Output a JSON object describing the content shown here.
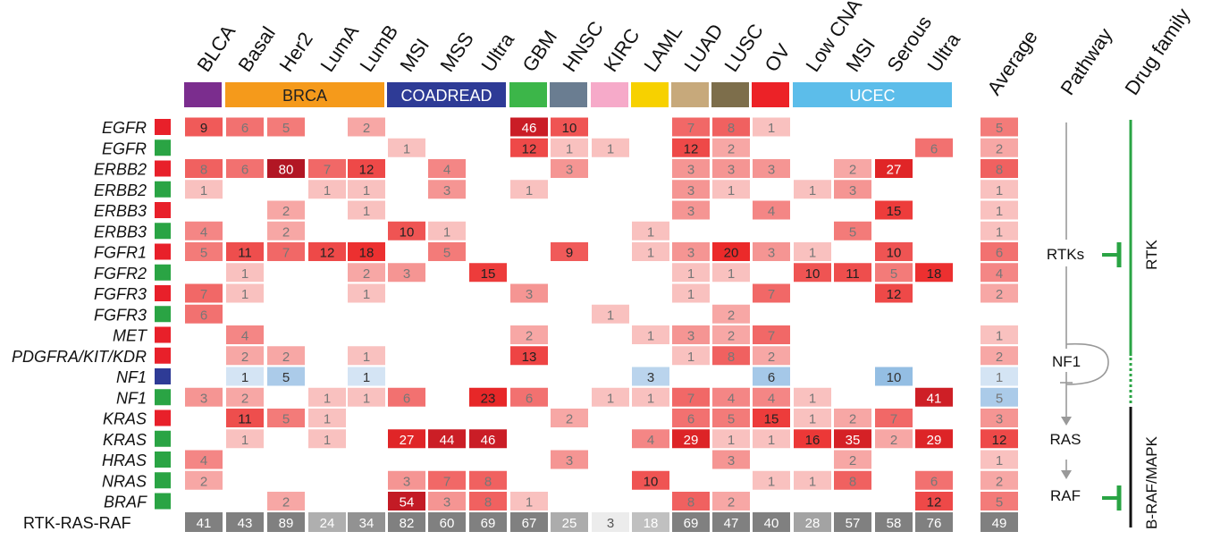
{
  "chart_data": {
    "type": "heatmap",
    "columns": [
      "BLCA",
      "Basal",
      "Her2",
      "LumA",
      "LumB",
      "MSI",
      "MSS",
      "Ultra",
      "GBM",
      "HNSC",
      "KIRC",
      "LAML",
      "LUAD",
      "LUSC",
      "OV",
      "Low CNA",
      "MSI",
      "Serous",
      "Ultra"
    ],
    "groups": [
      {
        "label": "",
        "color": "#7b2d8e"
      },
      {
        "label": "BRCA",
        "color": "#f59a1b"
      },
      {
        "label": "COADREAD",
        "color": "#2e3b96"
      },
      {
        "label": "",
        "color": "#3cb649"
      },
      {
        "label": "",
        "color": "#6a7d91"
      },
      {
        "label": "",
        "color": "#f6aac9"
      },
      {
        "label": "",
        "color": "#f7d100"
      },
      {
        "label": "",
        "color": "#c7a97b"
      },
      {
        "label": "",
        "color": "#7d6e4b"
      },
      {
        "label": "",
        "color": "#ec2227"
      },
      {
        "label": "UCEC",
        "color": "#5cbdea"
      }
    ],
    "average_label": "Average",
    "pathway_label": "Pathway",
    "drug_family_label": "Drug family",
    "alteration_colors": {
      "amp_or_activating": "#e8202a",
      "mutation": "#2aa444",
      "deletion": "#2e3b96"
    },
    "rows": [
      {
        "gene": "EGFR",
        "type": "red",
        "values": [
          9,
          6,
          5,
          null,
          2,
          null,
          null,
          null,
          46,
          10,
          null,
          null,
          7,
          8,
          1,
          null,
          null,
          null,
          null
        ],
        "average": 5
      },
      {
        "gene": "EGFR",
        "type": "green",
        "values": [
          null,
          null,
          null,
          null,
          null,
          1,
          null,
          null,
          12,
          1,
          1,
          null,
          12,
          2,
          null,
          null,
          null,
          null,
          6
        ],
        "average": 2
      },
      {
        "gene": "ERBB2",
        "type": "red",
        "values": [
          8,
          6,
          80,
          7,
          12,
          null,
          4,
          null,
          null,
          3,
          null,
          null,
          3,
          3,
          3,
          null,
          2,
          27,
          null
        ],
        "average": 8
      },
      {
        "gene": "ERBB2",
        "type": "green",
        "values": [
          1,
          null,
          null,
          1,
          1,
          null,
          3,
          null,
          1,
          null,
          null,
          null,
          3,
          1,
          null,
          1,
          3,
          null,
          null
        ],
        "average": 1
      },
      {
        "gene": "ERBB3",
        "type": "red",
        "values": [
          null,
          null,
          2,
          null,
          1,
          null,
          null,
          null,
          null,
          null,
          null,
          null,
          3,
          null,
          4,
          null,
          null,
          15,
          null
        ],
        "average": 1
      },
      {
        "gene": "ERBB3",
        "type": "green",
        "values": [
          4,
          null,
          2,
          null,
          null,
          10,
          1,
          null,
          null,
          null,
          null,
          1,
          null,
          null,
          null,
          null,
          5,
          null,
          null
        ],
        "average": 1
      },
      {
        "gene": "FGFR1",
        "type": "red",
        "values": [
          5,
          11,
          7,
          12,
          18,
          null,
          5,
          null,
          null,
          9,
          null,
          1,
          3,
          20,
          3,
          1,
          null,
          10,
          null
        ],
        "average": 6
      },
      {
        "gene": "FGFR2",
        "type": "green",
        "values": [
          null,
          1,
          null,
          null,
          2,
          3,
          null,
          15,
          null,
          null,
          null,
          null,
          1,
          1,
          null,
          10,
          11,
          5,
          18
        ],
        "average": 4
      },
      {
        "gene": "FGFR3",
        "type": "red",
        "values": [
          7,
          1,
          null,
          null,
          1,
          null,
          null,
          null,
          3,
          null,
          null,
          null,
          1,
          null,
          7,
          null,
          null,
          12,
          null
        ],
        "average": 2
      },
      {
        "gene": "FGFR3",
        "type": "green",
        "values": [
          6,
          null,
          null,
          null,
          null,
          null,
          null,
          null,
          null,
          null,
          1,
          null,
          null,
          2,
          null,
          null,
          null,
          null,
          null
        ],
        "average": null
      },
      {
        "gene": "MET",
        "type": "red",
        "values": [
          null,
          4,
          null,
          null,
          null,
          null,
          null,
          null,
          2,
          null,
          null,
          1,
          3,
          2,
          7,
          null,
          null,
          null,
          null
        ],
        "average": 1
      },
      {
        "gene": "PDGFRA/KIT/KDR",
        "type": "red",
        "values": [
          null,
          2,
          2,
          null,
          1,
          null,
          null,
          null,
          13,
          null,
          null,
          null,
          1,
          8,
          2,
          null,
          null,
          null,
          null
        ],
        "average": 2
      },
      {
        "gene": "NF1",
        "type": "blue",
        "values": [
          null,
          1,
          5,
          null,
          1,
          null,
          null,
          null,
          null,
          null,
          null,
          3,
          null,
          null,
          6,
          null,
          null,
          10,
          null
        ],
        "average": 1
      },
      {
        "gene": "NF1",
        "type": "green",
        "values": [
          3,
          2,
          null,
          1,
          1,
          6,
          null,
          23,
          6,
          null,
          1,
          1,
          7,
          4,
          4,
          1,
          null,
          null,
          41
        ],
        "average": 5
      },
      {
        "gene": "KRAS",
        "type": "red",
        "values": [
          null,
          11,
          5,
          1,
          null,
          null,
          null,
          null,
          null,
          2,
          null,
          null,
          6,
          5,
          15,
          1,
          2,
          7,
          null
        ],
        "average": 3
      },
      {
        "gene": "KRAS",
        "type": "green",
        "values": [
          null,
          1,
          null,
          1,
          null,
          27,
          44,
          46,
          null,
          null,
          null,
          4,
          29,
          1,
          1,
          16,
          35,
          2,
          29
        ],
        "average": 12
      },
      {
        "gene": "HRAS",
        "type": "green",
        "values": [
          4,
          null,
          null,
          null,
          null,
          null,
          null,
          null,
          null,
          3,
          null,
          null,
          null,
          3,
          null,
          null,
          2,
          null,
          null
        ],
        "average": 1
      },
      {
        "gene": "NRAS",
        "type": "green",
        "values": [
          2,
          null,
          null,
          null,
          null,
          3,
          7,
          8,
          null,
          null,
          null,
          10,
          null,
          null,
          1,
          1,
          8,
          null,
          6
        ],
        "average": 2
      },
      {
        "gene": "BRAF",
        "type": "green",
        "values": [
          null,
          null,
          2,
          null,
          null,
          54,
          3,
          8,
          1,
          null,
          null,
          null,
          8,
          2,
          null,
          null,
          null,
          null,
          12
        ],
        "average": 5
      }
    ],
    "summary": {
      "label": "RTK-RAS-RAF",
      "values": [
        41,
        43,
        89,
        24,
        34,
        82,
        60,
        69,
        67,
        25,
        3,
        18,
        69,
        47,
        40,
        28,
        57,
        58,
        76
      ],
      "average": 49
    },
    "pathway": {
      "rtks": "RTKs",
      "nf1": "NF1",
      "ras": "RAS",
      "raf": "RAF"
    },
    "drug_family": {
      "rtk": "RTK",
      "braf": "B-RAF/MAPK",
      "rtk_color": "#2aa444",
      "braf_color": "#000000"
    }
  }
}
